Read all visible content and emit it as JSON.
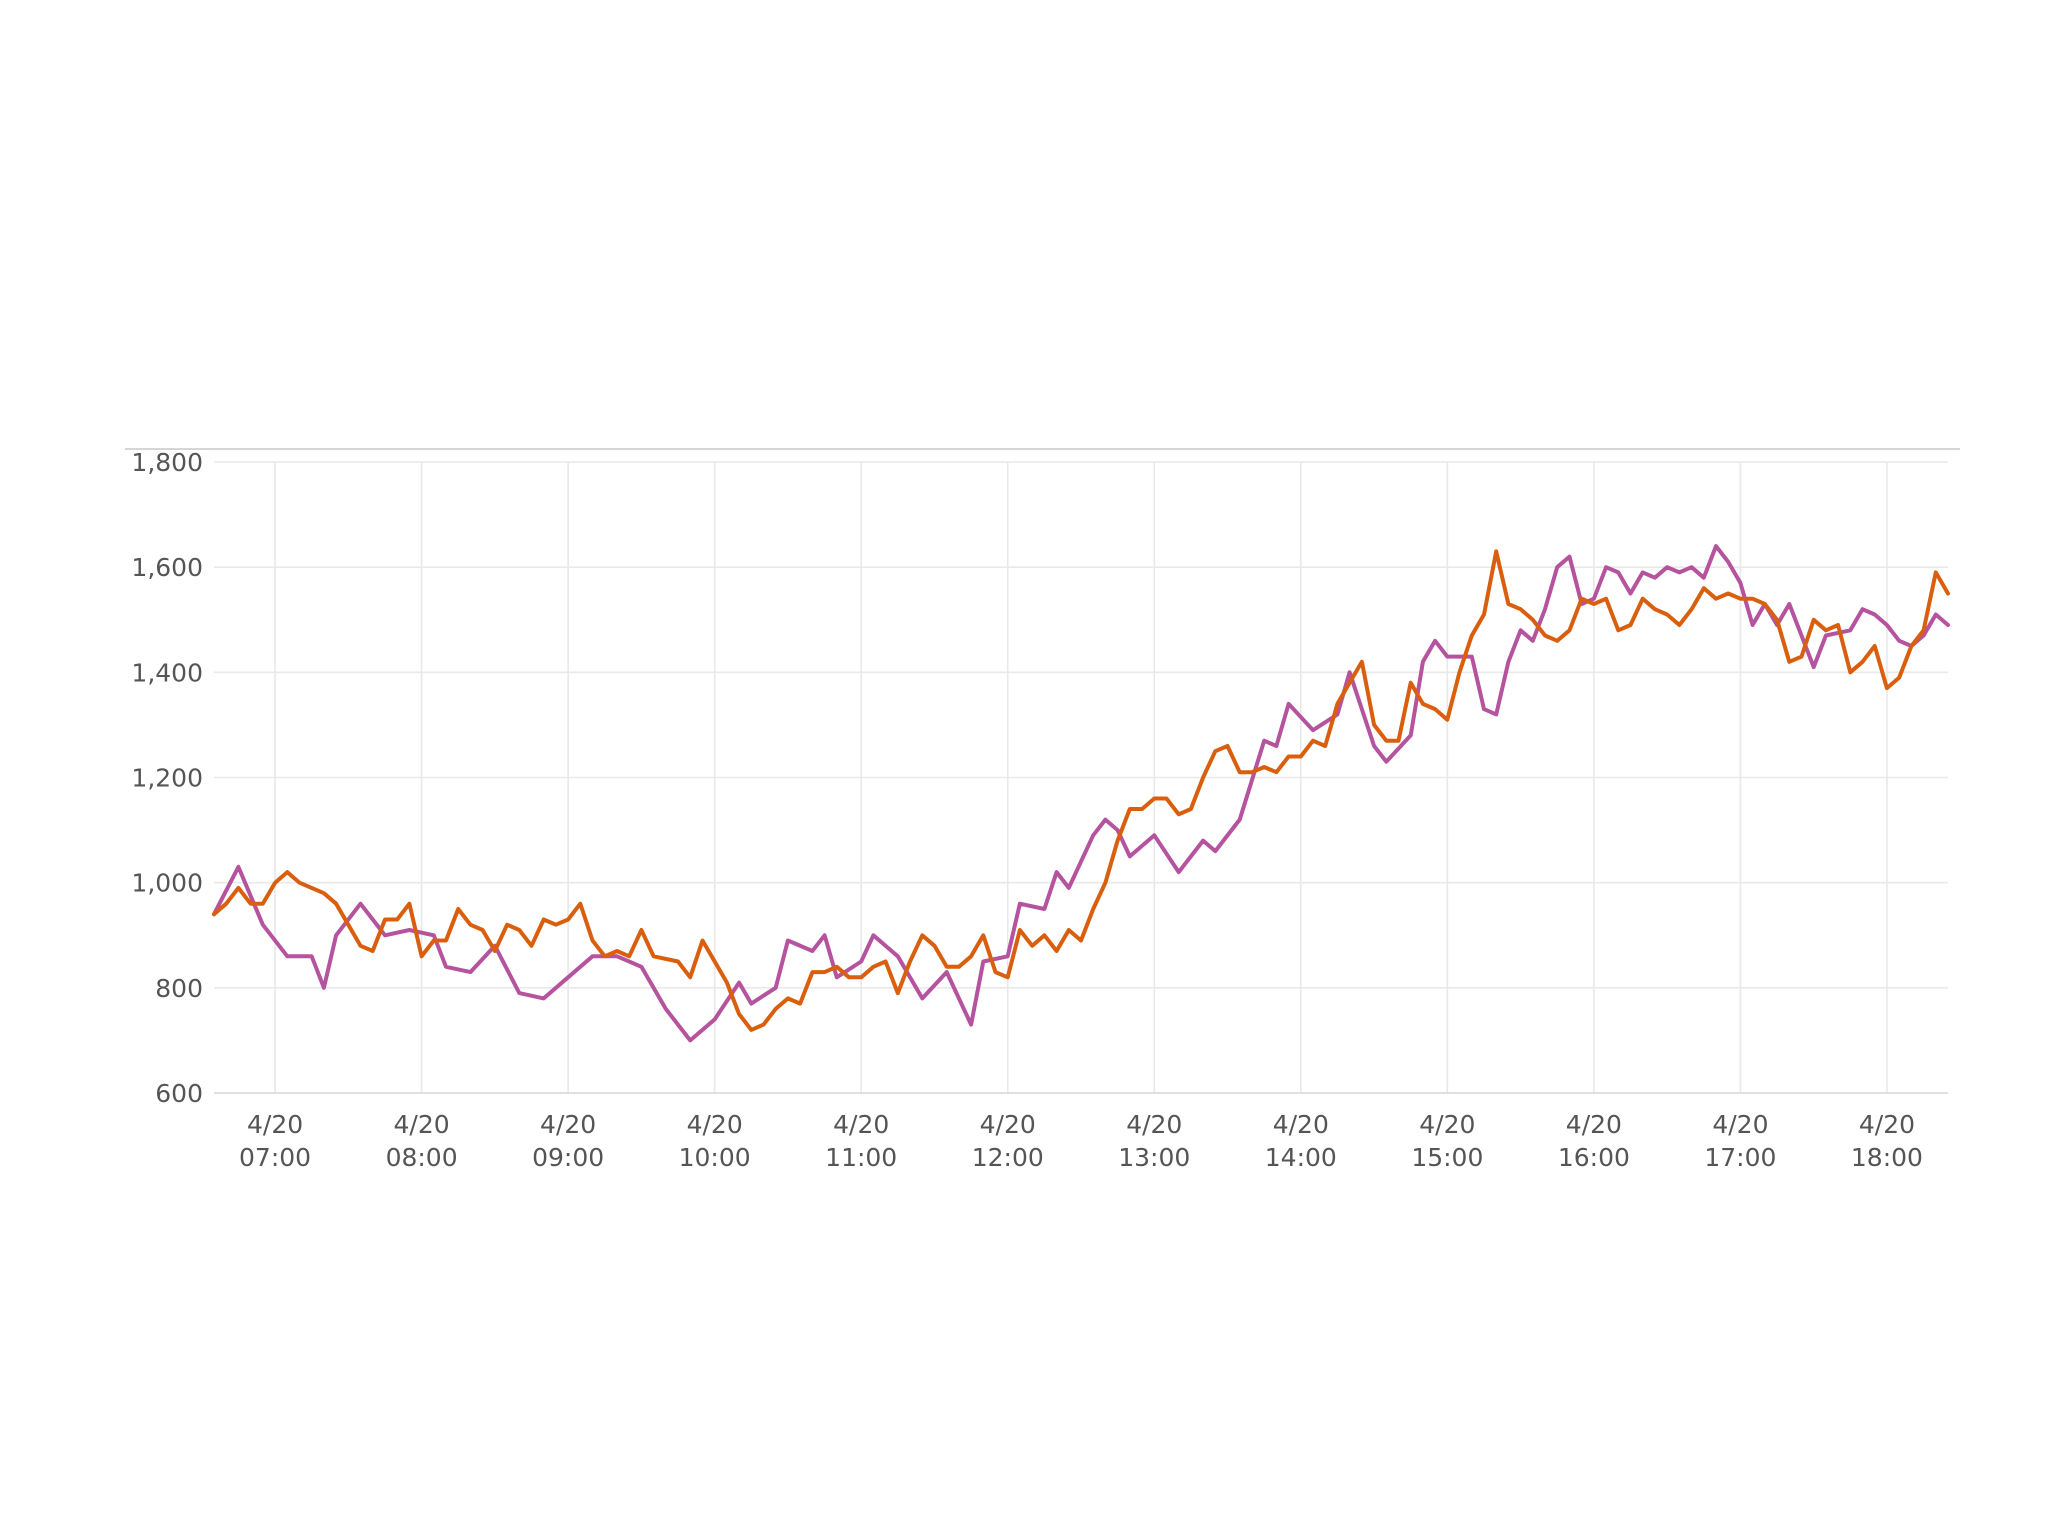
{
  "chart_data": {
    "type": "line",
    "title": "",
    "xlabel": "",
    "ylabel": "",
    "ylim": [
      600,
      1800
    ],
    "yticks": [
      600,
      800,
      1000,
      1200,
      1400,
      1600,
      1800
    ],
    "ytick_labels": [
      "600",
      "800",
      "1,000",
      "1,200",
      "1,400",
      "1,600",
      "1,800"
    ],
    "xlim": [
      "06:35",
      "18:25"
    ],
    "xticks": [
      "07:00",
      "08:00",
      "09:00",
      "10:00",
      "11:00",
      "12:00",
      "13:00",
      "14:00",
      "15:00",
      "16:00",
      "17:00",
      "18:00"
    ],
    "xtick_labels": [
      {
        "date": "4/20",
        "time": "07:00"
      },
      {
        "date": "4/20",
        "time": "08:00"
      },
      {
        "date": "4/20",
        "time": "09:00"
      },
      {
        "date": "4/20",
        "time": "10:00"
      },
      {
        "date": "4/20",
        "time": "11:00"
      },
      {
        "date": "4/20",
        "time": "12:00"
      },
      {
        "date": "4/20",
        "time": "13:00"
      },
      {
        "date": "4/20",
        "time": "14:00"
      },
      {
        "date": "4/20",
        "time": "15:00"
      },
      {
        "date": "4/20",
        "time": "16:00"
      },
      {
        "date": "4/20",
        "time": "17:00"
      },
      {
        "date": "4/20",
        "time": "18:00"
      }
    ],
    "grid": true,
    "legend": "none",
    "series": [
      {
        "color": "#b5539e",
        "points": [
          [
            "06:35",
            940
          ],
          [
            "06:45",
            1030
          ],
          [
            "06:55",
            920
          ],
          [
            "07:05",
            860
          ],
          [
            "07:15",
            860
          ],
          [
            "07:20",
            800
          ],
          [
            "07:25",
            900
          ],
          [
            "07:35",
            960
          ],
          [
            "07:45",
            900
          ],
          [
            "07:55",
            910
          ],
          [
            "08:05",
            900
          ],
          [
            "08:10",
            840
          ],
          [
            "08:20",
            830
          ],
          [
            "08:30",
            880
          ],
          [
            "08:40",
            790
          ],
          [
            "08:50",
            780
          ],
          [
            "09:00",
            820
          ],
          [
            "09:10",
            860
          ],
          [
            "09:20",
            860
          ],
          [
            "09:30",
            840
          ],
          [
            "09:40",
            760
          ],
          [
            "09:50",
            700
          ],
          [
            "10:00",
            740
          ],
          [
            "10:10",
            810
          ],
          [
            "10:15",
            770
          ],
          [
            "10:25",
            800
          ],
          [
            "10:30",
            890
          ],
          [
            "10:40",
            870
          ],
          [
            "10:45",
            900
          ],
          [
            "10:50",
            820
          ],
          [
            "11:00",
            850
          ],
          [
            "11:05",
            900
          ],
          [
            "11:15",
            860
          ],
          [
            "11:25",
            780
          ],
          [
            "11:35",
            830
          ],
          [
            "11:45",
            730
          ],
          [
            "11:50",
            850
          ],
          [
            "12:00",
            860
          ],
          [
            "12:05",
            960
          ],
          [
            "12:15",
            950
          ],
          [
            "12:20",
            1020
          ],
          [
            "12:25",
            990
          ],
          [
            "12:35",
            1090
          ],
          [
            "12:40",
            1120
          ],
          [
            "12:45",
            1100
          ],
          [
            "12:50",
            1050
          ],
          [
            "13:00",
            1090
          ],
          [
            "13:10",
            1020
          ],
          [
            "13:20",
            1080
          ],
          [
            "13:25",
            1060
          ],
          [
            "13:35",
            1120
          ],
          [
            "13:45",
            1270
          ],
          [
            "13:50",
            1260
          ],
          [
            "13:55",
            1340
          ],
          [
            "14:05",
            1290
          ],
          [
            "14:15",
            1320
          ],
          [
            "14:20",
            1400
          ],
          [
            "14:30",
            1260
          ],
          [
            "14:35",
            1230
          ],
          [
            "14:45",
            1280
          ],
          [
            "14:50",
            1420
          ],
          [
            "14:55",
            1460
          ],
          [
            "15:00",
            1430
          ],
          [
            "15:10",
            1430
          ],
          [
            "15:15",
            1330
          ],
          [
            "15:20",
            1320
          ],
          [
            "15:25",
            1420
          ],
          [
            "15:30",
            1480
          ],
          [
            "15:35",
            1460
          ],
          [
            "15:40",
            1520
          ],
          [
            "15:45",
            1600
          ],
          [
            "15:50",
            1620
          ],
          [
            "15:55",
            1530
          ],
          [
            "16:00",
            1540
          ],
          [
            "16:05",
            1600
          ],
          [
            "16:10",
            1590
          ],
          [
            "16:15",
            1550
          ],
          [
            "16:20",
            1590
          ],
          [
            "16:25",
            1580
          ],
          [
            "16:30",
            1600
          ],
          [
            "16:35",
            1590
          ],
          [
            "16:40",
            1600
          ],
          [
            "16:45",
            1580
          ],
          [
            "16:50",
            1640
          ],
          [
            "16:55",
            1610
          ],
          [
            "17:00",
            1570
          ],
          [
            "17:05",
            1490
          ],
          [
            "17:10",
            1530
          ],
          [
            "17:15",
            1490
          ],
          [
            "17:20",
            1530
          ],
          [
            "17:30",
            1410
          ],
          [
            "17:35",
            1470
          ],
          [
            "17:45",
            1480
          ],
          [
            "17:50",
            1520
          ],
          [
            "17:55",
            1510
          ],
          [
            "18:00",
            1490
          ],
          [
            "18:05",
            1460
          ],
          [
            "18:10",
            1450
          ],
          [
            "18:15",
            1470
          ],
          [
            "18:20",
            1510
          ],
          [
            "18:25",
            1490
          ]
        ]
      },
      {
        "color": "#d95f0e",
        "points": [
          [
            "06:35",
            940
          ],
          [
            "06:40",
            960
          ],
          [
            "06:45",
            990
          ],
          [
            "06:50",
            960
          ],
          [
            "06:55",
            960
          ],
          [
            "07:00",
            1000
          ],
          [
            "07:05",
            1020
          ],
          [
            "07:10",
            1000
          ],
          [
            "07:20",
            980
          ],
          [
            "07:25",
            960
          ],
          [
            "07:35",
            880
          ],
          [
            "07:40",
            870
          ],
          [
            "07:45",
            930
          ],
          [
            "07:50",
            930
          ],
          [
            "07:55",
            960
          ],
          [
            "08:00",
            860
          ],
          [
            "08:05",
            890
          ],
          [
            "08:10",
            890
          ],
          [
            "08:15",
            950
          ],
          [
            "08:20",
            920
          ],
          [
            "08:25",
            910
          ],
          [
            "08:30",
            870
          ],
          [
            "08:35",
            920
          ],
          [
            "08:40",
            910
          ],
          [
            "08:45",
            880
          ],
          [
            "08:50",
            930
          ],
          [
            "08:55",
            920
          ],
          [
            "09:00",
            930
          ],
          [
            "09:05",
            960
          ],
          [
            "09:10",
            890
          ],
          [
            "09:15",
            860
          ],
          [
            "09:20",
            870
          ],
          [
            "09:25",
            860
          ],
          [
            "09:30",
            910
          ],
          [
            "09:35",
            860
          ],
          [
            "09:45",
            850
          ],
          [
            "09:50",
            820
          ],
          [
            "09:55",
            890
          ],
          [
            "10:00",
            850
          ],
          [
            "10:05",
            810
          ],
          [
            "10:10",
            750
          ],
          [
            "10:15",
            720
          ],
          [
            "10:20",
            730
          ],
          [
            "10:25",
            760
          ],
          [
            "10:30",
            780
          ],
          [
            "10:35",
            770
          ],
          [
            "10:40",
            830
          ],
          [
            "10:45",
            830
          ],
          [
            "10:50",
            840
          ],
          [
            "10:55",
            820
          ],
          [
            "11:00",
            820
          ],
          [
            "11:05",
            840
          ],
          [
            "11:10",
            850
          ],
          [
            "11:15",
            790
          ],
          [
            "11:20",
            850
          ],
          [
            "11:25",
            900
          ],
          [
            "11:30",
            880
          ],
          [
            "11:35",
            840
          ],
          [
            "11:40",
            840
          ],
          [
            "11:45",
            860
          ],
          [
            "11:50",
            900
          ],
          [
            "11:55",
            830
          ],
          [
            "12:00",
            820
          ],
          [
            "12:05",
            910
          ],
          [
            "12:10",
            880
          ],
          [
            "12:15",
            900
          ],
          [
            "12:20",
            870
          ],
          [
            "12:25",
            910
          ],
          [
            "12:30",
            890
          ],
          [
            "12:35",
            950
          ],
          [
            "12:40",
            1000
          ],
          [
            "12:45",
            1080
          ],
          [
            "12:50",
            1140
          ],
          [
            "12:55",
            1140
          ],
          [
            "13:00",
            1160
          ],
          [
            "13:05",
            1160
          ],
          [
            "13:10",
            1130
          ],
          [
            "13:15",
            1140
          ],
          [
            "13:20",
            1200
          ],
          [
            "13:25",
            1250
          ],
          [
            "13:30",
            1260
          ],
          [
            "13:35",
            1210
          ],
          [
            "13:40",
            1210
          ],
          [
            "13:45",
            1220
          ],
          [
            "13:50",
            1210
          ],
          [
            "13:55",
            1240
          ],
          [
            "14:00",
            1240
          ],
          [
            "14:05",
            1270
          ],
          [
            "14:10",
            1260
          ],
          [
            "14:15",
            1340
          ],
          [
            "14:20",
            1380
          ],
          [
            "14:25",
            1420
          ],
          [
            "14:30",
            1300
          ],
          [
            "14:35",
            1270
          ],
          [
            "14:40",
            1270
          ],
          [
            "14:45",
            1380
          ],
          [
            "14:50",
            1340
          ],
          [
            "14:55",
            1330
          ],
          [
            "15:00",
            1310
          ],
          [
            "15:05",
            1400
          ],
          [
            "15:10",
            1470
          ],
          [
            "15:15",
            1510
          ],
          [
            "15:20",
            1630
          ],
          [
            "15:25",
            1530
          ],
          [
            "15:30",
            1520
          ],
          [
            "15:35",
            1500
          ],
          [
            "15:40",
            1470
          ],
          [
            "15:45",
            1460
          ],
          [
            "15:50",
            1480
          ],
          [
            "15:55",
            1540
          ],
          [
            "16:00",
            1530
          ],
          [
            "16:05",
            1540
          ],
          [
            "16:10",
            1480
          ],
          [
            "16:15",
            1490
          ],
          [
            "16:20",
            1540
          ],
          [
            "16:25",
            1520
          ],
          [
            "16:30",
            1510
          ],
          [
            "16:35",
            1490
          ],
          [
            "16:40",
            1520
          ],
          [
            "16:45",
            1560
          ],
          [
            "16:50",
            1540
          ],
          [
            "16:55",
            1550
          ],
          [
            "17:00",
            1540
          ],
          [
            "17:05",
            1540
          ],
          [
            "17:10",
            1530
          ],
          [
            "17:15",
            1500
          ],
          [
            "17:20",
            1420
          ],
          [
            "17:25",
            1430
          ],
          [
            "17:30",
            1500
          ],
          [
            "17:35",
            1480
          ],
          [
            "17:40",
            1490
          ],
          [
            "17:45",
            1400
          ],
          [
            "17:50",
            1420
          ],
          [
            "17:55",
            1450
          ],
          [
            "18:00",
            1370
          ],
          [
            "18:05",
            1390
          ],
          [
            "18:10",
            1450
          ],
          [
            "18:15",
            1480
          ],
          [
            "18:20",
            1590
          ],
          [
            "18:25",
            1550
          ]
        ]
      }
    ]
  }
}
